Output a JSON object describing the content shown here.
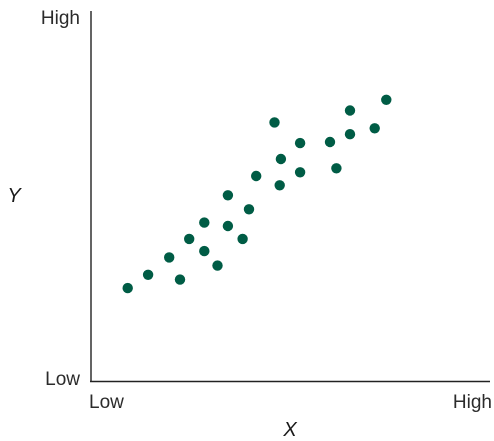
{
  "chart_data": {
    "type": "scatter",
    "title": "",
    "xlabel": "X",
    "ylabel": "Y",
    "x_ticks": {
      "low": "Low",
      "high": "High"
    },
    "y_ticks": {
      "low": "Low",
      "high": "High"
    },
    "xlim": [
      0,
      100
    ],
    "ylim": [
      0,
      100
    ],
    "grid": false,
    "marker_color": "#005c45",
    "series": [
      {
        "points": [
          [
            9.2,
            25.1
          ],
          [
            14.3,
            28.7
          ],
          [
            19.6,
            33.4
          ],
          [
            22.3,
            27.4
          ],
          [
            24.6,
            38.4
          ],
          [
            28.4,
            42.8
          ],
          [
            28.4,
            35.1
          ],
          [
            31.7,
            31.2
          ],
          [
            34.3,
            41.9
          ],
          [
            34.3,
            50.2
          ],
          [
            38.0,
            38.4
          ],
          [
            39.6,
            46.4
          ],
          [
            41.4,
            55.4
          ],
          [
            46.0,
            69.9
          ],
          [
            47.3,
            52.9
          ],
          [
            47.6,
            60.0
          ],
          [
            52.4,
            64.3
          ],
          [
            52.4,
            56.4
          ],
          [
            59.9,
            64.6
          ],
          [
            61.5,
            57.5
          ],
          [
            64.9,
            66.7
          ],
          [
            64.9,
            73.1
          ],
          [
            71.1,
            68.3
          ],
          [
            74.0,
            76.0
          ]
        ]
      }
    ]
  }
}
